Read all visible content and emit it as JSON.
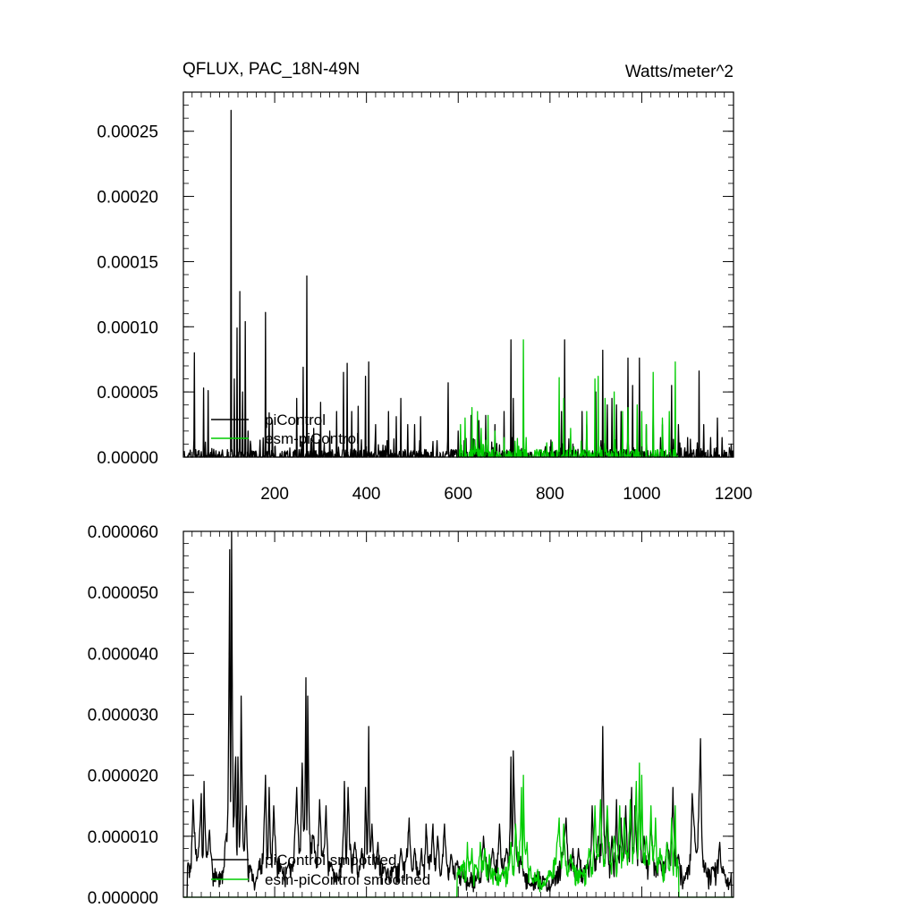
{
  "chart_data": [
    {
      "type": "line",
      "title": "QFLUX, PAC_18N-49N",
      "units": "Watts/meter^2",
      "xlim": [
        1,
        1200
      ],
      "ylim": [
        0,
        0.00028
      ],
      "x_ticks": [
        200,
        400,
        600,
        800,
        1000,
        1200
      ],
      "x_tick_labels": [
        "200",
        "400",
        "600",
        "800",
        "1000",
        "1200"
      ],
      "y_ticks": [
        0,
        5e-05,
        0.0001,
        0.00015,
        0.0002,
        0.00025
      ],
      "y_tick_labels": [
        "0.00000",
        "0.00005",
        "0.00010",
        "0.00015",
        "0.00020",
        "0.00025"
      ],
      "legend_position": "lower-left",
      "series": [
        {
          "name": "piControl",
          "color": "#000000",
          "spikes": [
            [
              25,
              8e-05
            ],
            [
              45,
              5.3e-05
            ],
            [
              55,
              5.1e-05
            ],
            [
              105,
              0.000266
            ],
            [
              112,
              6e-05
            ],
            [
              118,
              9.9e-05
            ],
            [
              124,
              0.000127
            ],
            [
              130,
              5e-05
            ],
            [
              136,
              0.000104
            ],
            [
              142,
              2e-05
            ],
            [
              180,
              0.000111
            ],
            [
              188,
              3.4e-05
            ],
            [
              195,
              2.8e-05
            ],
            [
              248,
              4.5e-05
            ],
            [
              262,
              6.9e-05
            ],
            [
              270,
              0.000139
            ],
            [
              285,
              2.2e-05
            ],
            [
              300,
              4.2e-05
            ],
            [
              320,
              2e-05
            ],
            [
              335,
              3.5e-05
            ],
            [
              350,
              6.5e-05
            ],
            [
              358,
              7.2e-05
            ],
            [
              368,
              3.5e-05
            ],
            [
              382,
              3.9e-05
            ],
            [
              398,
              6.2e-05
            ],
            [
              405,
              7.3e-05
            ],
            [
              420,
              2.5e-05
            ],
            [
              448,
              3.5e-05
            ],
            [
              465,
              3.1e-05
            ],
            [
              475,
              4.5e-05
            ],
            [
              490,
              2.5e-05
            ],
            [
              505,
              2.5e-05
            ],
            [
              518,
              3.1e-05
            ],
            [
              545,
              1.2e-05
            ],
            [
              578,
              5.7e-05
            ],
            [
              600,
              2e-05
            ],
            [
              628,
              3.2e-05
            ],
            [
              645,
              2.8e-05
            ],
            [
              660,
              3.2e-05
            ],
            [
              680,
              2.5e-05
            ],
            [
              700,
              3.5e-05
            ],
            [
              715,
              9e-05
            ],
            [
              720,
              4.5e-05
            ],
            [
              790,
              8e-06
            ],
            [
              825,
              3.5e-05
            ],
            [
              832,
              9e-05
            ],
            [
              850,
              1e-05
            ],
            [
              870,
              3.5e-05
            ],
            [
              880,
              2.5e-05
            ],
            [
              900,
              5e-05
            ],
            [
              915,
              8.2e-05
            ],
            [
              925,
              4e-05
            ],
            [
              935,
              4.5e-05
            ],
            [
              945,
              4e-05
            ],
            [
              955,
              3.5e-05
            ],
            [
              970,
              7.6e-05
            ],
            [
              980,
              5.5e-05
            ],
            [
              995,
              7.6e-05
            ],
            [
              1010,
              2.5e-05
            ],
            [
              1025,
              3.5e-05
            ],
            [
              1045,
              2.5e-05
            ],
            [
              1065,
              5.5e-05
            ],
            [
              1080,
              2.5e-05
            ],
            [
              1100,
              1.5e-05
            ],
            [
              1125,
              6.6e-05
            ],
            [
              1135,
              2.5e-05
            ],
            [
              1150,
              1.5e-05
            ],
            [
              1165,
              3e-05
            ],
            [
              1175,
              1.5e-05
            ],
            [
              1195,
              1e-05
            ]
          ]
        },
        {
          "name": "esm-piControl",
          "color": "#00cc00",
          "spikes": [
            [
              605,
              2.5e-05
            ],
            [
              615,
              3e-05
            ],
            [
              630,
              3.8e-05
            ],
            [
              642,
              3.5e-05
            ],
            [
              650,
              2.2e-05
            ],
            [
              665,
              3.2e-05
            ],
            [
              680,
              2e-05
            ],
            [
              700,
              1.5e-05
            ],
            [
              742,
              9e-05
            ],
            [
              748,
              1.5e-05
            ],
            [
              820,
              6.1e-05
            ],
            [
              830,
              4.5e-05
            ],
            [
              845,
              2.2e-05
            ],
            [
              880,
              3.5e-05
            ],
            [
              898,
              6e-05
            ],
            [
              905,
              6.2e-05
            ],
            [
              920,
              4.5e-05
            ],
            [
              940,
              5e-05
            ],
            [
              958,
              3.5e-05
            ],
            [
              970,
              3.8e-05
            ],
            [
              990,
              4e-05
            ],
            [
              1000,
              3.5e-05
            ],
            [
              1010,
              2.5e-05
            ],
            [
              1025,
              6.5e-05
            ],
            [
              1045,
              3e-05
            ],
            [
              1060,
              3.5e-05
            ],
            [
              1073,
              7.3e-05
            ]
          ]
        }
      ]
    },
    {
      "type": "line",
      "xlim": [
        1,
        1200
      ],
      "ylim": [
        0,
        6e-05
      ],
      "x_ticks": [
        200,
        400,
        600,
        800,
        1000,
        1200
      ],
      "y_ticks": [
        0,
        1e-05,
        2e-05,
        3e-05,
        4e-05,
        5e-05,
        6e-05
      ],
      "y_tick_labels": [
        "0.000000",
        "0.000010",
        "0.000020",
        "0.000030",
        "0.000040",
        "0.000050",
        "0.000060"
      ],
      "legend_position": "lower-left",
      "series": [
        {
          "name": "piControl smoothed",
          "color": "#000000",
          "bumps": [
            [
              10,
              5e-06
            ],
            [
              22,
              1.6e-05
            ],
            [
              40,
              1.7e-05
            ],
            [
              46,
              1.9e-05
            ],
            [
              58,
              1.1e-05
            ],
            [
              75,
              3e-06
            ],
            [
              90,
              5e-06
            ],
            [
              102,
              5.7e-05
            ],
            [
              106,
              6e-05
            ],
            [
              115,
              2.3e-05
            ],
            [
              120,
              2.3e-05
            ],
            [
              127,
              3.3e-05
            ],
            [
              138,
              1.5e-05
            ],
            [
              148,
              5e-06
            ],
            [
              162,
              3e-06
            ],
            [
              180,
              2e-05
            ],
            [
              188,
              1.8e-05
            ],
            [
              198,
              1.5e-05
            ],
            [
              215,
              5e-06
            ],
            [
              228,
              5e-06
            ],
            [
              248,
              1.8e-05
            ],
            [
              260,
              2.2e-05
            ],
            [
              268,
              3.6e-05
            ],
            [
              272,
              3.3e-05
            ],
            [
              285,
              1e-05
            ],
            [
              298,
              1.6e-05
            ],
            [
              312,
              1.5e-05
            ],
            [
              325,
              5e-06
            ],
            [
              340,
              3e-06
            ],
            [
              352,
              1.9e-05
            ],
            [
              360,
              1.8e-05
            ],
            [
              375,
              9e-06
            ],
            [
              390,
              8e-06
            ],
            [
              398,
              1.8e-05
            ],
            [
              405,
              2.8e-05
            ],
            [
              412,
              1.2e-05
            ],
            [
              425,
              9e-06
            ],
            [
              440,
              5e-06
            ],
            [
              460,
              5e-06
            ],
            [
              475,
              8e-06
            ],
            [
              493,
              1.3e-05
            ],
            [
              505,
              8e-06
            ],
            [
              520,
              8e-06
            ],
            [
              530,
              1.2e-05
            ],
            [
              545,
              1.2e-05
            ],
            [
              555,
              1e-05
            ],
            [
              570,
              1.2e-05
            ],
            [
              585,
              7e-06
            ],
            [
              598,
              6e-06
            ],
            [
              610,
              5e-06
            ],
            [
              622,
              2e-06
            ],
            [
              640,
              3e-06
            ],
            [
              655,
              1e-05
            ],
            [
              675,
              8e-06
            ],
            [
              690,
              1.2e-05
            ],
            [
              705,
              8e-06
            ],
            [
              715,
              2.3e-05
            ],
            [
              720,
              2.4e-05
            ],
            [
              740,
              5e-06
            ],
            [
              755,
              2e-06
            ],
            [
              790,
              3e-06
            ],
            [
              800,
              1e-06
            ],
            [
              835,
              1.3e-05
            ],
            [
              850,
              8e-06
            ],
            [
              862,
              8e-06
            ],
            [
              880,
              5e-06
            ],
            [
              892,
              1.5e-05
            ],
            [
              905,
              1e-05
            ],
            [
              915,
              2.8e-05
            ],
            [
              925,
              1.3e-05
            ],
            [
              935,
              1e-05
            ],
            [
              945,
              1.6e-05
            ],
            [
              955,
              1.3e-05
            ],
            [
              965,
              1.5e-05
            ],
            [
              978,
              1.8e-05
            ],
            [
              985,
              1.5e-05
            ],
            [
              995,
              1.9e-05
            ],
            [
              1005,
              1e-05
            ],
            [
              1020,
              1.2e-05
            ],
            [
              1040,
              6e-06
            ],
            [
              1055,
              9e-06
            ],
            [
              1068,
              1.8e-05
            ],
            [
              1080,
              7e-06
            ],
            [
              1095,
              3e-06
            ],
            [
              1110,
              1.7e-05
            ],
            [
              1128,
              2.6e-05
            ],
            [
              1140,
              4e-06
            ],
            [
              1155,
              5e-06
            ],
            [
              1170,
              9e-06
            ],
            [
              1185,
              2e-06
            ],
            [
              1195,
              4e-06
            ]
          ]
        },
        {
          "name": "esm-piControl smoothed",
          "color": "#00cc00",
          "bumps": [
            [
              598,
              4e-06
            ],
            [
              605,
              5e-06
            ],
            [
              612,
              6e-06
            ],
            [
              620,
              9e-06
            ],
            [
              630,
              8e-06
            ],
            [
              638,
              5e-06
            ],
            [
              648,
              9e-06
            ],
            [
              658,
              8e-06
            ],
            [
              668,
              7e-06
            ],
            [
              680,
              4e-06
            ],
            [
              695,
              4e-06
            ],
            [
              715,
              9e-06
            ],
            [
              725,
              1.2e-05
            ],
            [
              738,
              1.8e-05
            ],
            [
              742,
              2e-05
            ],
            [
              750,
              9e-06
            ],
            [
              760,
              3e-06
            ],
            [
              790,
              2e-06
            ],
            [
              820,
              1.3e-05
            ],
            [
              830,
              1.2e-05
            ],
            [
              845,
              7e-06
            ],
            [
              870,
              4e-06
            ],
            [
              885,
              8e-06
            ],
            [
              898,
              1.5e-05
            ],
            [
              910,
              1.6e-05
            ],
            [
              925,
              1.5e-05
            ],
            [
              940,
              1e-05
            ],
            [
              952,
              1.5e-05
            ],
            [
              962,
              1.3e-05
            ],
            [
              975,
              1.6e-05
            ],
            [
              988,
              1.9e-05
            ],
            [
              995,
              2.2e-05
            ],
            [
              1000,
              2e-05
            ],
            [
              1010,
              1e-05
            ],
            [
              1020,
              1.5e-05
            ],
            [
              1030,
              1.3e-05
            ],
            [
              1040,
              8e-06
            ],
            [
              1055,
              9e-06
            ],
            [
              1065,
              1.3e-05
            ],
            [
              1073,
              1.5e-05
            ],
            [
              1080,
              5e-06
            ]
          ]
        }
      ]
    }
  ]
}
